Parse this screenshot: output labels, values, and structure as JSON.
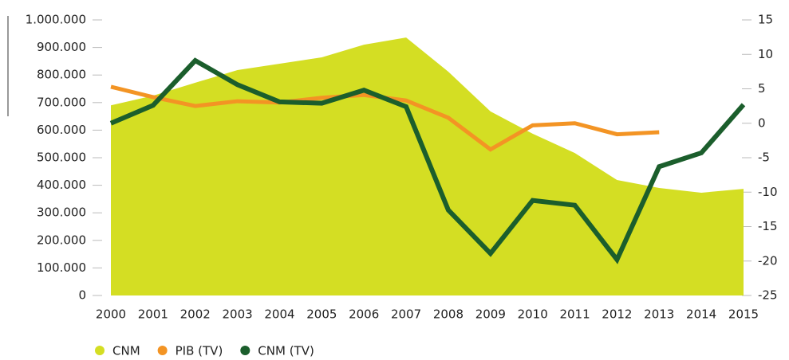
{
  "chart_data": {
    "type": "area-line",
    "categories": [
      "2000",
      "2001",
      "2002",
      "2003",
      "2004",
      "2005",
      "2006",
      "2007",
      "2008",
      "2009",
      "2010",
      "2011",
      "2012",
      "2013",
      "2014",
      "2015"
    ],
    "series": [
      {
        "name": "CNM",
        "color": "#d4de23",
        "kind": "area",
        "axis": "y",
        "values": [
          690000,
          725000,
          772000,
          818000,
          841000,
          864000,
          910000,
          936000,
          812000,
          668000,
          587000,
          517000,
          419000,
          390000,
          373000,
          387000
        ]
      },
      {
        "name": "PIB (TV)",
        "color": "#f39424",
        "kind": "line",
        "axis": "y2",
        "values": [
          5.3,
          3.8,
          2.5,
          3.2,
          3.0,
          3.7,
          4.1,
          3.3,
          0.8,
          -3.8,
          -0.3,
          0.0,
          -1.6,
          -1.3,
          null,
          null
        ]
      },
      {
        "name": "CNM (TV)",
        "color": "#1b5e2c",
        "kind": "line",
        "axis": "y2",
        "values": [
          0,
          2.6,
          9.1,
          5.6,
          3.1,
          2.9,
          4.8,
          2.4,
          -12.6,
          -18.9,
          -11.2,
          -11.9,
          -19.8,
          -6.3,
          -4.3,
          2.7
        ]
      }
    ],
    "ylim": [
      0,
      1000000
    ],
    "yticks": [
      0,
      {
        "value": 100000,
        "label": "100.000"
      },
      {
        "value": 200000,
        "label": "200.000"
      },
      {
        "value": 300000,
        "label": "300.000"
      },
      {
        "value": 400000,
        "label": "400.000"
      },
      {
        "value": 500000,
        "label": "500.000"
      },
      {
        "value": 600000,
        "label": "600.000"
      },
      {
        "value": 700000,
        "label": "700.000"
      },
      {
        "value": 800000,
        "label": "800.000"
      },
      {
        "value": 900000,
        "label": "900.000"
      },
      {
        "value": 1000000,
        "label": "1.000.000"
      }
    ],
    "y2lim": [
      -25,
      15
    ],
    "y2ticks": [
      -25,
      -20,
      -15,
      -10,
      -5,
      0,
      5,
      10,
      15
    ]
  }
}
